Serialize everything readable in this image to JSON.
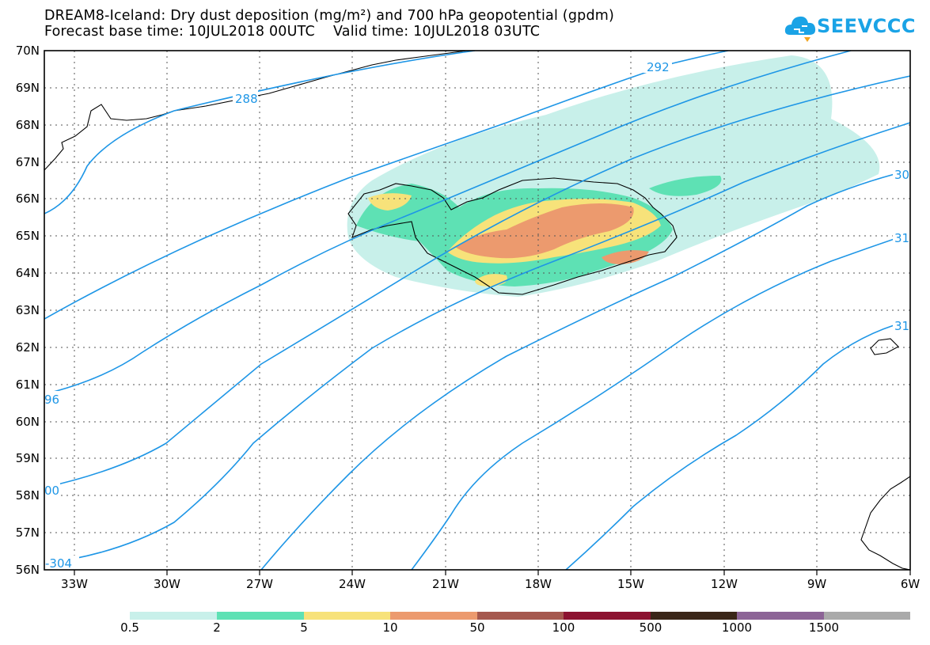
{
  "header": {
    "title_line1": "DREAM8-Iceland: Dry dust deposition (mg/m²) and 700 hPa geopotential (gpdm)",
    "title_line2": "Forecast base time: 10JUL2018 00UTC    Valid time: 10JUL2018 03UTC"
  },
  "logo": {
    "text": "SEEVCCC",
    "icon": "cloud-icon",
    "color": "#1aa3e6"
  },
  "map": {
    "lat_labels": [
      "70N",
      "69N",
      "68N",
      "67N",
      "66N",
      "65N",
      "64N",
      "63N",
      "62N",
      "61N",
      "60N",
      "59N",
      "58N",
      "57N",
      "56N"
    ],
    "lon_labels": [
      "33W",
      "30W",
      "27W",
      "24W",
      "21W",
      "18W",
      "15W",
      "12W",
      "9W",
      "6W"
    ],
    "contour_color": "#1e96e6",
    "contour_labels": [
      "288",
      "292",
      "96",
      "00",
      "-304",
      "30",
      "31",
      "31"
    ]
  },
  "colorbar": {
    "colors": [
      "#c8f0ea",
      "#5ee1b4",
      "#f7e27a",
      "#ec9a6e",
      "#a5584e",
      "#8c1230",
      "#3a2618",
      "#8c6496",
      "#aaaaaa"
    ],
    "labels": [
      "0.5",
      "2",
      "5",
      "10",
      "50",
      "100",
      "500",
      "1000",
      "1500"
    ]
  }
}
